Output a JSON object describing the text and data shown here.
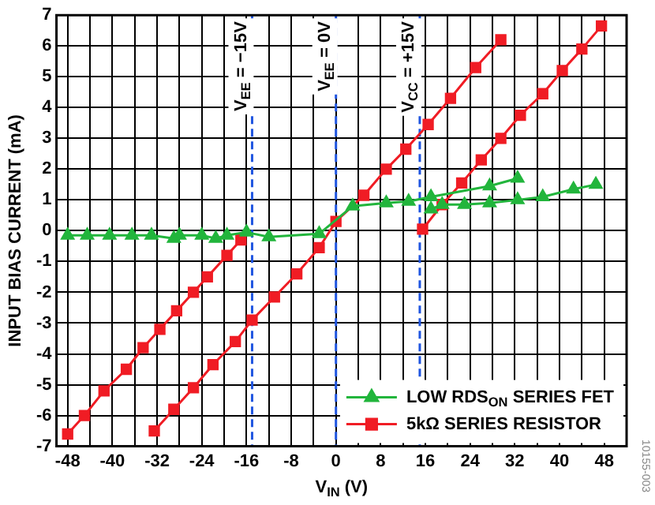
{
  "chart_data": {
    "type": "line",
    "xlabel": "V$_{IN}$ (V)",
    "ylabel": "INPUT BIAS CURRENT (mA)",
    "xlim": [
      -50,
      52
    ],
    "ylim": [
      -7,
      7
    ],
    "xticks": [
      -48,
      {
        "value": -44,
        "label": null
      },
      -40,
      {
        "value": -36,
        "label": null
      },
      -32,
      {
        "value": -28,
        "label": null
      },
      -24,
      {
        "value": -20,
        "label": null
      },
      -16,
      {
        "value": -12,
        "label": null
      },
      -8,
      {
        "value": -4,
        "label": null
      },
      0,
      {
        "value": 4,
        "label": null
      },
      8,
      {
        "value": 12,
        "label": null
      },
      16,
      {
        "value": 20,
        "label": null
      },
      24,
      {
        "value": 28,
        "label": null
      },
      32,
      {
        "value": 36,
        "label": null
      },
      40,
      {
        "value": 44,
        "label": null
      },
      48
    ],
    "yticks": [
      -7,
      -6,
      -5,
      -4,
      -3,
      -2,
      -1,
      0,
      1,
      2,
      3,
      4,
      5,
      6,
      7
    ],
    "grid": true,
    "legend": "bottom right",
    "line_style": "solid",
    "series": [
      {
        "name": "LOW RDS$_{ON}$ SERIES FET",
        "color": "#22b53c",
        "marker": "triangle",
        "x": [
          -48,
          -44.5,
          -40.5,
          -36.5,
          -33,
          -29,
          -28,
          -24,
          -21.5,
          -19.5,
          -16,
          -12,
          -3,
          3,
          9,
          13,
          17,
          27.5,
          32.5
        ],
        "values": [
          -0.15,
          -0.15,
          -0.15,
          -0.15,
          -0.15,
          -0.25,
          -0.15,
          -0.15,
          -0.25,
          -0.15,
          -0.05,
          -0.2,
          -0.1,
          0.8,
          0.9,
          0.95,
          1.1,
          1.45,
          1.7
        ]
      },
      {
        "color": "#22b53c",
        "marker": "triangle",
        "x": [
          17,
          19,
          23,
          27.5,
          32.5,
          37,
          42.5,
          46.5
        ],
        "values": [
          0.7,
          0.85,
          0.85,
          0.9,
          1.0,
          1.1,
          1.35,
          1.5
        ]
      },
      {
        "name": "5kΩ SERIES RESISTOR",
        "color": "#f01c24",
        "marker": "square",
        "x": [
          -48,
          -45,
          -41.5,
          -37.5,
          -34.5,
          -31.5,
          -28.5,
          -25.5,
          -23,
          -19.5,
          -17
        ],
        "values": [
          -6.6,
          -6.0,
          -5.2,
          -4.5,
          -3.8,
          -3.2,
          -2.6,
          -2.0,
          -1.5,
          -0.8,
          -0.3
        ]
      },
      {
        "color": "#f01c24",
        "marker": "square",
        "x": [
          -32.5,
          -29,
          -25.5,
          -22,
          -18,
          -15,
          -11,
          -7,
          -3,
          0,
          5,
          9,
          12.5,
          16.5,
          20.5,
          25,
          29.5
        ],
        "values": [
          -6.5,
          -5.8,
          -5.1,
          -4.35,
          -3.6,
          -2.9,
          -2.15,
          -1.4,
          -0.55,
          0.3,
          1.15,
          2.0,
          2.65,
          3.45,
          4.3,
          5.3,
          6.2
        ]
      },
      {
        "color": "#f01c24",
        "marker": "square",
        "x": [
          15.5,
          19,
          22.5,
          26,
          29.5,
          33,
          37,
          40.5,
          44,
          47.5
        ],
        "values": [
          0.05,
          0.85,
          1.55,
          2.3,
          3.0,
          3.75,
          4.45,
          5.2,
          5.9,
          6.65
        ]
      }
    ],
    "ref_lines": [
      {
        "axis": "x",
        "value": -15,
        "label": "V$_{EE}$ = −15V",
        "color": "#1f55e0",
        "line_style": "dashed"
      },
      {
        "axis": "x",
        "value": 0,
        "label": "V$_{EE}$ = 0V",
        "color": "#1f55e0",
        "line_style": "dashed"
      },
      {
        "axis": "x",
        "value": 15,
        "label": "V$_{CC}$ = +15V",
        "color": "#1f55e0",
        "line_style": "dashed"
      }
    ],
    "annotations": [
      "10155-003"
    ]
  }
}
